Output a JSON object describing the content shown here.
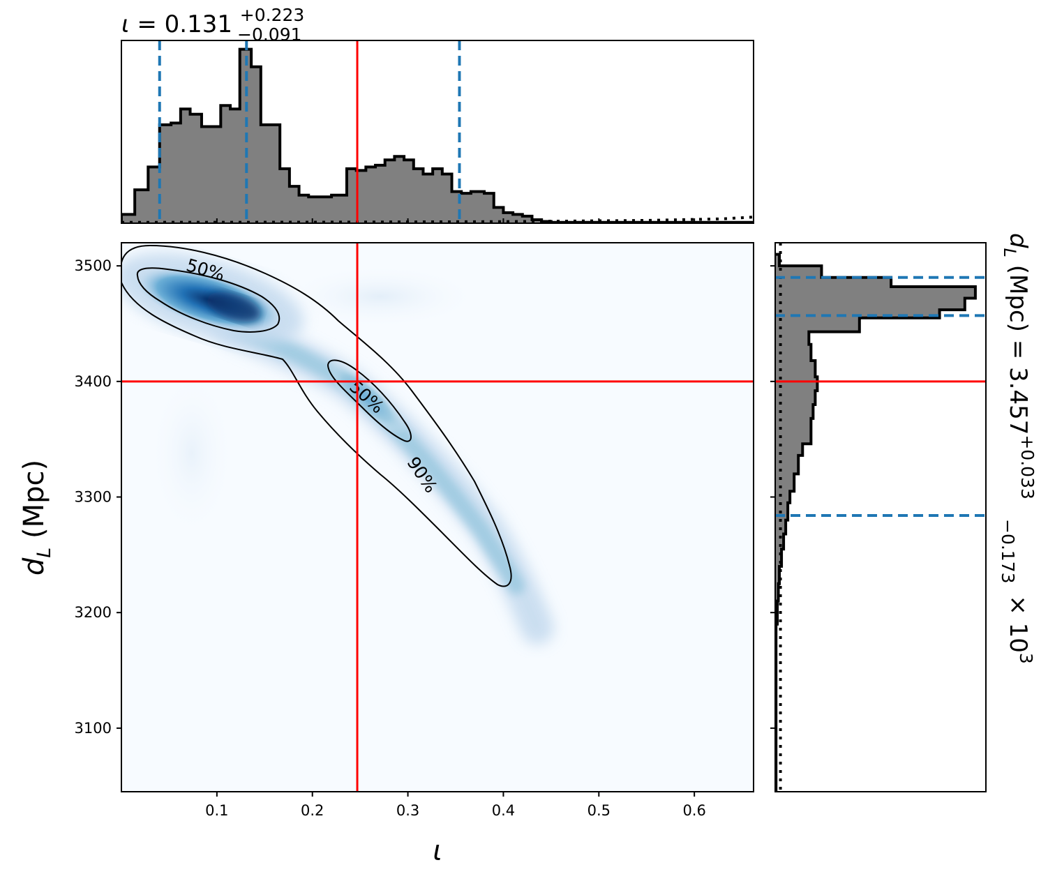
{
  "chart_data": {
    "type": "corner",
    "panels": {
      "top_histogram": {
        "type": "histogram",
        "parameter": "ι",
        "title": {
          "lhs": "ι",
          "eq": " = ",
          "value": "0.131",
          "plus": "+0.223",
          "minus": "−0.091"
        },
        "xlim": [
          0.0,
          0.662
        ],
        "bins": [
          [
            0.0,
            0.014,
            0.05
          ],
          [
            0.014,
            0.028,
            0.19
          ],
          [
            0.028,
            0.04,
            0.32
          ],
          [
            0.04,
            0.052,
            0.56
          ],
          [
            0.052,
            0.062,
            0.57
          ],
          [
            0.062,
            0.072,
            0.65
          ],
          [
            0.072,
            0.084,
            0.62
          ],
          [
            0.084,
            0.094,
            0.55
          ],
          [
            0.094,
            0.104,
            0.55
          ],
          [
            0.104,
            0.114,
            0.67
          ],
          [
            0.114,
            0.124,
            0.65
          ],
          [
            0.124,
            0.136,
            0.99
          ],
          [
            0.136,
            0.146,
            0.89
          ],
          [
            0.146,
            0.166,
            0.56
          ],
          [
            0.166,
            0.176,
            0.31
          ],
          [
            0.176,
            0.186,
            0.21
          ],
          [
            0.186,
            0.196,
            0.16
          ],
          [
            0.196,
            0.206,
            0.15
          ],
          [
            0.206,
            0.22,
            0.15
          ],
          [
            0.22,
            0.236,
            0.16
          ],
          [
            0.236,
            0.246,
            0.31
          ],
          [
            0.246,
            0.256,
            0.3
          ],
          [
            0.256,
            0.266,
            0.32
          ],
          [
            0.266,
            0.276,
            0.33
          ],
          [
            0.276,
            0.286,
            0.36
          ],
          [
            0.286,
            0.296,
            0.38
          ],
          [
            0.296,
            0.306,
            0.36
          ],
          [
            0.306,
            0.316,
            0.31
          ],
          [
            0.316,
            0.326,
            0.28
          ],
          [
            0.326,
            0.336,
            0.31
          ],
          [
            0.336,
            0.346,
            0.28
          ],
          [
            0.346,
            0.356,
            0.18
          ],
          [
            0.356,
            0.366,
            0.17
          ],
          [
            0.366,
            0.38,
            0.18
          ],
          [
            0.38,
            0.39,
            0.17
          ],
          [
            0.39,
            0.4,
            0.09
          ],
          [
            0.4,
            0.41,
            0.06
          ],
          [
            0.41,
            0.42,
            0.05
          ],
          [
            0.42,
            0.43,
            0.04
          ],
          [
            0.43,
            0.44,
            0.02
          ],
          [
            0.44,
            0.45,
            0.01
          ],
          [
            0.45,
            0.662,
            0.005
          ]
        ],
        "ylim": [
          0,
          1.04
        ],
        "prior_dotted": [
          [
            0.0,
            0.005
          ],
          [
            0.2,
            0.006
          ],
          [
            0.4,
            0.009
          ],
          [
            0.55,
            0.016
          ],
          [
            0.63,
            0.025
          ],
          [
            0.662,
            0.035
          ]
        ],
        "quantile_lines": [
          0.04,
          0.131,
          0.354
        ],
        "truth": 0.247
      },
      "joint_2d": {
        "type": "2d-density",
        "colormap": "Blues",
        "xlim": [
          0.0,
          0.662
        ],
        "ylim": [
          3045,
          3520
        ],
        "xticks": [
          0.1,
          0.2,
          0.3,
          0.4,
          0.5,
          0.6
        ],
        "yticks": [
          3100,
          3200,
          3300,
          3400,
          3500
        ],
        "xlabel": "ι",
        "ylabel": "d_L (Mpc)",
        "contour_labels": [
          "50%",
          "50%",
          "90%"
        ],
        "truth": {
          "x": 0.247,
          "y": 3400
        }
      },
      "right_histogram": {
        "type": "histogram",
        "orientation": "horizontal",
        "parameter": "d_L",
        "title": {
          "lhs": "d",
          "sub": "L",
          "rest": " (Mpc) = 3.457",
          "plus": "+0.033",
          "minus": "−0.173",
          "times": " × 10",
          "exp": "3"
        },
        "ylim": [
          3045,
          3520
        ],
        "bins": [
          [
            3500,
            3510,
            0.02
          ],
          [
            3490,
            3500,
            0.22
          ],
          [
            3482,
            3490,
            0.55
          ],
          [
            3472,
            3482,
            0.95
          ],
          [
            3462,
            3472,
            0.9
          ],
          [
            3455,
            3462,
            0.78
          ],
          [
            3443,
            3455,
            0.4
          ],
          [
            3432,
            3443,
            0.16
          ],
          [
            3418,
            3432,
            0.17
          ],
          [
            3404,
            3418,
            0.19
          ],
          [
            3392,
            3404,
            0.2
          ],
          [
            3380,
            3392,
            0.19
          ],
          [
            3368,
            3380,
            0.18
          ],
          [
            3356,
            3368,
            0.17
          ],
          [
            3346,
            3356,
            0.17
          ],
          [
            3336,
            3346,
            0.13
          ],
          [
            3320,
            3336,
            0.11
          ],
          [
            3305,
            3320,
            0.09
          ],
          [
            3295,
            3305,
            0.07
          ],
          [
            3280,
            3295,
            0.06
          ],
          [
            3268,
            3280,
            0.05
          ],
          [
            3255,
            3268,
            0.04
          ],
          [
            3240,
            3255,
            0.03
          ],
          [
            3225,
            3240,
            0.02
          ],
          [
            3210,
            3225,
            0.015
          ],
          [
            3190,
            3210,
            0.01
          ],
          [
            3045,
            3190,
            0.004
          ]
        ],
        "xlim": [
          0,
          1.0
        ],
        "prior_dotted_x": 0.025,
        "quantile_lines": [
          3490,
          3457,
          3284
        ],
        "truth": 3400
      }
    }
  }
}
